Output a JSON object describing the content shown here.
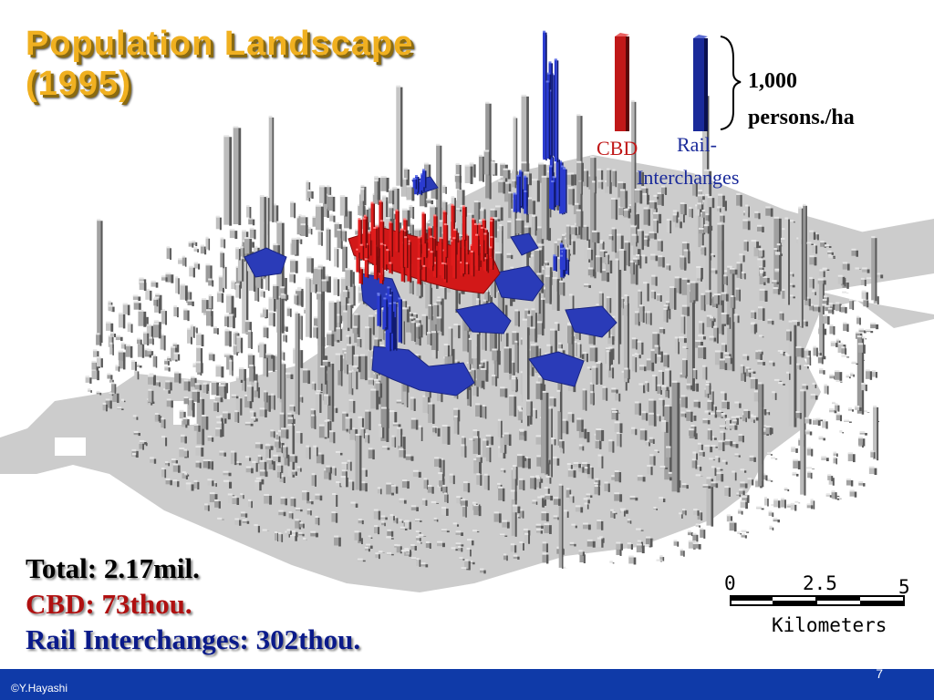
{
  "title_line1": "Population Landscape",
  "title_line2": "(1995)",
  "legend": {
    "cbd_label": "CBD",
    "rail_label_line1": "Rail-",
    "rail_label_line2": "Interchanges",
    "scale_value": "1,000",
    "scale_unit": "persons./ha",
    "cbd_color": "#c01818",
    "rail_color": "#1a2a9a"
  },
  "stats": {
    "total": "Total: 2.17mil.",
    "cbd": "CBD: 73thou.",
    "rail": "Rail Interchanges: 302thou.",
    "total_color": "#000000",
    "cbd_color": "#b01010",
    "rail_color": "#0a1a8a"
  },
  "scale_bar": {
    "tick0": "0",
    "tick_mid": "2.5",
    "tick_end": "5",
    "unit": "Kilometers"
  },
  "footer": {
    "credit": "©Y.Hayashi",
    "page_number": "7",
    "bar_color": "#0f3aa8"
  },
  "colors": {
    "base_plate": "#c8c8c8",
    "bar_gray": "#9a9a9a"
  }
}
